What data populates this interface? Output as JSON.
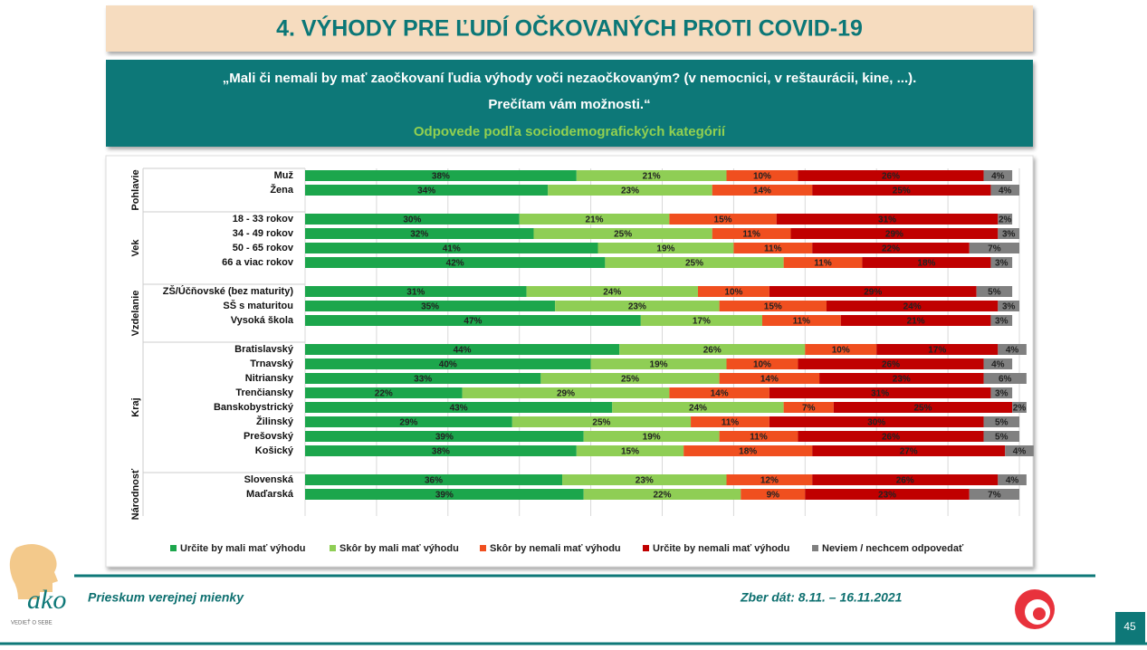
{
  "header": {
    "title": "4. VÝHODY PRE ĽUDÍ OČKOVANÝCH PROTI COVID-19",
    "question_line1": "„Mali či nemali by mať zaočkovaní ľudia výhody voči nezaočkovaným? (v nemocnici, v reštaurácii, kine, ...).",
    "question_line2": "Prečítam vám možnosti.“",
    "subtitle": "Odpovede podľa sociodemografických kategórií"
  },
  "footer": {
    "left": "Prieskum verejnej mienky",
    "right": "Zber dát: 8.11. – 16.11.2021",
    "page": "45",
    "logo": "ako",
    "tagline": "VEDIEŤ O SEBE"
  },
  "chart_data": {
    "type": "stacked-bar-horizontal",
    "groups": [
      {
        "name": "Pohlavie",
        "categories": [
          "Muž",
          "Žena"
        ]
      },
      {
        "name": "Vek",
        "categories": [
          "18 - 33 rokov",
          "34 - 49 rokov",
          "50 - 65 rokov",
          "66 a viac rokov"
        ]
      },
      {
        "name": "Vzdelanie",
        "categories": [
          "ZŠ/Účňovské (bez maturity)",
          "SŠ s maturitou",
          "Vysoká škola"
        ]
      },
      {
        "name": "Kraj",
        "categories": [
          "Bratislavský",
          "Trnavský",
          "Nitriansky",
          "Trenčiansky",
          "Banskobystrický",
          "Žilinský",
          "Prešovský",
          "Košický"
        ]
      },
      {
        "name": "Národnosť",
        "categories": [
          "Slovenská",
          "Maďarská"
        ]
      }
    ],
    "xlim": [
      0,
      100
    ],
    "xticks": [
      0,
      10,
      20,
      30,
      40,
      50,
      60,
      70,
      80,
      90,
      100
    ],
    "grid": true,
    "legend": "bottom",
    "series": [
      {
        "name": "Určite by mali mať výhodu",
        "color": "#1ca64c",
        "values": [
          38,
          34,
          30,
          32,
          41,
          42,
          31,
          35,
          47,
          44,
          40,
          33,
          22,
          43,
          29,
          39,
          38,
          36,
          39
        ],
        "value_labels": [
          "38%",
          "34%",
          "30%",
          "32%",
          "41%",
          "42%",
          "31%",
          "35%",
          "47%",
          "44%",
          "40%",
          "33%",
          "22%",
          "43%",
          "29%",
          "39%",
          "38%",
          "36%",
          "39%"
        ]
      },
      {
        "name": "Skôr by mali mať výhodu",
        "color": "#8fce55",
        "values": [
          21,
          23,
          21,
          25,
          19,
          25,
          24,
          23,
          17,
          26,
          19,
          25,
          29,
          24,
          25,
          19,
          15,
          23,
          22
        ],
        "value_labels": [
          "21%",
          "23%",
          "21%",
          "25%",
          "19%",
          "25%",
          "24%",
          "23%",
          "17%",
          "26%",
          "19%",
          "25%",
          "29%",
          "24%",
          "25%",
          "19%",
          "15%",
          "23%",
          "22%"
        ]
      },
      {
        "name": "Skôr by nemali mať výhodu",
        "color": "#f04f1f",
        "values": [
          10,
          14,
          15,
          11,
          11,
          11,
          10,
          15,
          11,
          10,
          10,
          14,
          14,
          7,
          11,
          11,
          18,
          12,
          9
        ],
        "value_labels": [
          "10%",
          "14%",
          "15%",
          "11%",
          "11%",
          "11%",
          "10%",
          "15%",
          "11%",
          "10%",
          "10%",
          "14%",
          "14%",
          "7%",
          "11%",
          "11%",
          "18%",
          "12%",
          "9%"
        ]
      },
      {
        "name": "Určite by nemali mať výhodu",
        "color": "#c00000",
        "values": [
          26,
          25,
          31,
          29,
          22,
          18,
          29,
          24,
          21,
          17,
          26,
          23,
          31,
          25,
          30,
          26,
          27,
          26,
          23
        ],
        "value_labels": [
          "26%",
          "25%",
          "31%",
          "29%",
          "22%",
          "18%",
          "29%",
          "24%",
          "21%",
          "17%",
          "26%",
          "23%",
          "31%",
          "25%",
          "30%",
          "26%",
          "27%",
          "26%",
          "23%"
        ]
      },
      {
        "name": "Neviem / nechcem odpovedať",
        "color": "#808080",
        "values": [
          4,
          4,
          2,
          3,
          7,
          3,
          5,
          3,
          3,
          4,
          4,
          6,
          3,
          2,
          5,
          5,
          4,
          4,
          7
        ],
        "value_labels": [
          "4%",
          "4%",
          "2%",
          "3%",
          "7%",
          "3%",
          "5%",
          "3%",
          "3%",
          "4%",
          "4%",
          "6%",
          "3%",
          "2%",
          "5%",
          "5%",
          "4%",
          "4%",
          "7%"
        ]
      }
    ]
  }
}
